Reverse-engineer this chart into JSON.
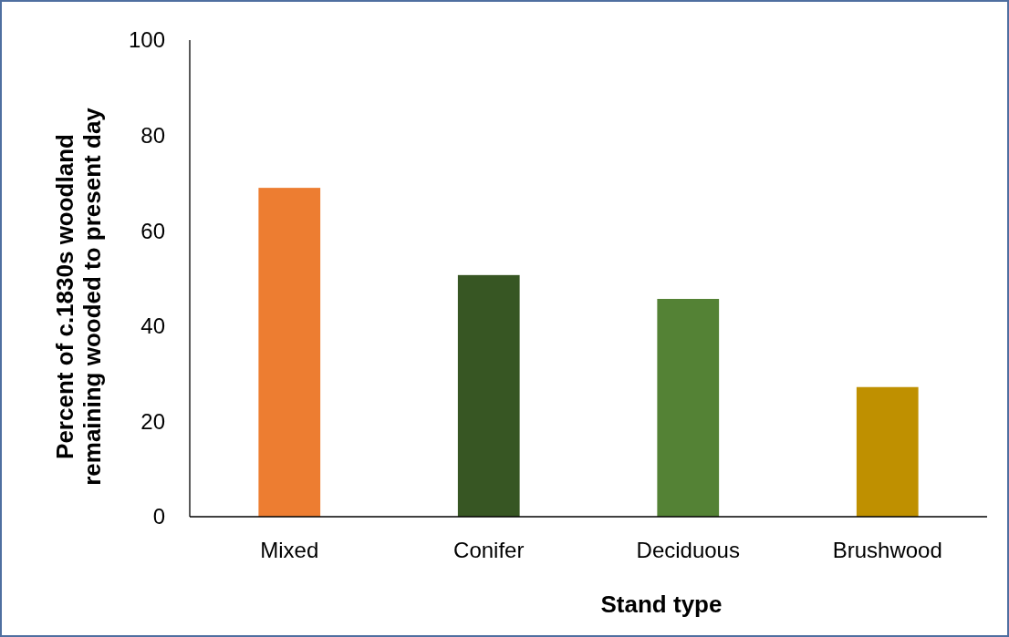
{
  "chart_data": {
    "type": "bar",
    "xlabel": "Stand type",
    "ylabel": "Percent of c.1830s woodland\nremaining wooded to present day",
    "categories": [
      "Mixed",
      "Conifer",
      "Deciduous",
      "Brushwood"
    ],
    "values": [
      69,
      50.7,
      45.7,
      27.2
    ],
    "colors": [
      "#ed7d31",
      "#375623",
      "#548235",
      "#bf9000"
    ],
    "ylim": [
      0,
      100
    ],
    "yticks": [
      0,
      20,
      40,
      60,
      80,
      100
    ],
    "grid": false
  }
}
